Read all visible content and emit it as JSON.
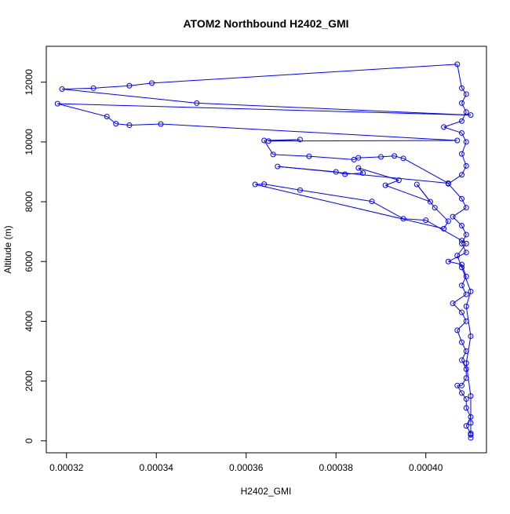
{
  "chart_data": {
    "type": "line",
    "title": "ATOM2 Northbound H2402_GMI",
    "xlabel": "H2402_GMI",
    "ylabel": "Altitude (m)",
    "xlim": [
      0.0003155,
      0.0004135
    ],
    "ylim": [
      -400,
      13200
    ],
    "x_ticks": [
      0.00032,
      0.00034,
      0.00036,
      0.00038,
      0.0004
    ],
    "x_tick_labels": [
      "0.00032",
      "0.00034",
      "0.00036",
      "0.00038",
      "0.00040"
    ],
    "y_ticks": [
      0,
      2000,
      4000,
      6000,
      8000,
      10000,
      12000
    ],
    "y_tick_labels": [
      "0",
      "2000",
      "4000",
      "6000",
      "8000",
      "10000",
      "12000"
    ],
    "grid": false,
    "legend": "none",
    "series": [
      {
        "color": "#0000ff",
        "marker": "open-circle",
        "points": [
          [
            0.00041,
            100
          ],
          [
            0.00041,
            250
          ],
          [
            0.000409,
            500
          ],
          [
            0.00041,
            800
          ],
          [
            0.000409,
            1100
          ],
          [
            0.000409,
            1400
          ],
          [
            0.000408,
            1600
          ],
          [
            0.000407,
            1850
          ],
          [
            0.000408,
            1850
          ],
          [
            0.000409,
            2100
          ],
          [
            0.000409,
            2400
          ],
          [
            0.000408,
            2700
          ],
          [
            0.000409,
            3000
          ],
          [
            0.000408,
            3300
          ],
          [
            0.000407,
            3700
          ],
          [
            0.000409,
            4000
          ],
          [
            0.000408,
            4300
          ],
          [
            0.000406,
            4600
          ],
          [
            0.000409,
            4900
          ],
          [
            0.000408,
            5200
          ],
          [
            0.000409,
            5500
          ],
          [
            0.000408,
            5900
          ],
          [
            0.000405,
            6000
          ],
          [
            0.000409,
            6300
          ],
          [
            0.000408,
            6600
          ],
          [
            0.000409,
            6900
          ],
          [
            0.000408,
            7200
          ],
          [
            0.000406,
            7500
          ],
          [
            0.000409,
            7800
          ],
          [
            0.000408,
            8100
          ],
          [
            0.000405,
            8600
          ],
          [
            0.000408,
            8900
          ],
          [
            0.000409,
            9200
          ],
          [
            0.000408,
            9600
          ],
          [
            0.000409,
            10000
          ],
          [
            0.000408,
            10300
          ],
          [
            0.000404,
            10500
          ],
          [
            0.000408,
            10700
          ],
          [
            0.000409,
            11000
          ],
          [
            0.000408,
            11300
          ],
          [
            0.000409,
            11600
          ],
          [
            0.000408,
            11800
          ],
          [
            0.000407,
            12600
          ],
          [
            0.000339,
            11970
          ],
          [
            0.000334,
            11880
          ],
          [
            0.000326,
            11800
          ],
          [
            0.000319,
            11770
          ],
          [
            0.000349,
            11300
          ],
          [
            0.00041,
            10900
          ],
          [
            0.000318,
            11280
          ],
          [
            0.000329,
            10850
          ],
          [
            0.000331,
            10610
          ],
          [
            0.000334,
            10560
          ],
          [
            0.000341,
            10600
          ],
          [
            0.000407,
            10050
          ],
          [
            0.000365,
            10030
          ],
          [
            0.000372,
            10080
          ],
          [
            0.000364,
            10050
          ],
          [
            0.000366,
            9580
          ],
          [
            0.000374,
            9520
          ],
          [
            0.000384,
            9410
          ],
          [
            0.000385,
            9470
          ],
          [
            0.00039,
            9500
          ],
          [
            0.000393,
            9530
          ],
          [
            0.000395,
            9450
          ],
          [
            0.000405,
            8620
          ],
          [
            0.000367,
            9180
          ],
          [
            0.00038,
            9000
          ],
          [
            0.000382,
            8920
          ],
          [
            0.000386,
            8960
          ],
          [
            0.000385,
            9130
          ],
          [
            0.000394,
            8720
          ],
          [
            0.000391,
            8550
          ],
          [
            0.000401,
            8000
          ],
          [
            0.000398,
            8580
          ],
          [
            0.000402,
            7800
          ],
          [
            0.000405,
            7350
          ],
          [
            0.000404,
            7100
          ],
          [
            0.000362,
            8580
          ],
          [
            0.000364,
            8590
          ],
          [
            0.000372,
            8390
          ],
          [
            0.000388,
            8010
          ],
          [
            0.000395,
            7430
          ],
          [
            0.0004,
            7380
          ],
          [
            0.000408,
            6700
          ],
          [
            0.000409,
            6600
          ],
          [
            0.000407,
            6200
          ],
          [
            0.000408,
            5800
          ],
          [
            0.00041,
            5000
          ],
          [
            0.000409,
            4500
          ],
          [
            0.00041,
            3500
          ],
          [
            0.000409,
            2600
          ],
          [
            0.00041,
            1500
          ],
          [
            0.00041,
            600
          ],
          [
            0.00041,
            200
          ]
        ]
      }
    ]
  }
}
